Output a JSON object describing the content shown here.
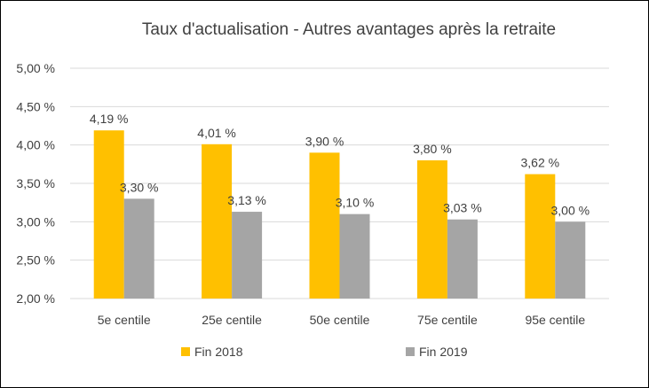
{
  "chart_data": {
    "type": "bar",
    "title": "Taux d'actualisation - Autres avantages après la retraite",
    "xlabel": "",
    "ylabel": "",
    "categories": [
      "5e centile",
      "25e centile",
      "50e centile",
      "75e centile",
      "95e centile"
    ],
    "series": [
      {
        "name": "Fin 2018",
        "color": "#ffc000",
        "values": [
          4.19,
          4.01,
          3.9,
          3.8,
          3.62
        ],
        "labels": [
          "4,19 %",
          "4,01 %",
          "3,90 %",
          "3,80 %",
          "3,62 %"
        ]
      },
      {
        "name": "Fin 2019",
        "color": "#a5a5a5",
        "values": [
          3.3,
          3.13,
          3.1,
          3.03,
          3.0
        ],
        "labels": [
          "3,30 %",
          "3,13 %",
          "3,10 %",
          "3,03 %",
          "3,00 %"
        ]
      }
    ],
    "ylim": [
      2.0,
      5.0
    ],
    "yticks": [
      2.0,
      2.5,
      3.0,
      3.5,
      4.0,
      4.5,
      5.0
    ],
    "ytick_labels": [
      "2,00 %",
      "2,50 %",
      "3,00 %",
      "3,50 %",
      "4,00 %",
      "4,50 %",
      "5,00 %"
    ],
    "grid": true,
    "legend_position": "bottom"
  }
}
